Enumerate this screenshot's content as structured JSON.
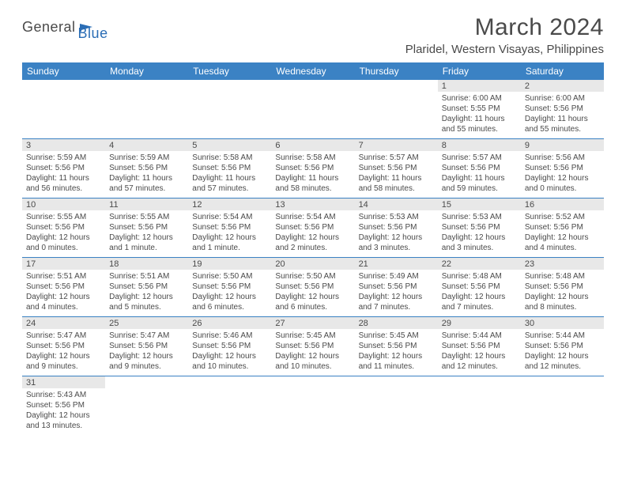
{
  "logo": {
    "textA": "General",
    "textB": "Blue"
  },
  "title": "March 2024",
  "location": "Plaridel, Western Visayas, Philippines",
  "colors": {
    "header_bg": "#3b82c4",
    "daybar_bg": "#e8e8e8",
    "text": "#4a4a4a",
    "row_border": "#3b82c4"
  },
  "daysOfWeek": [
    "Sunday",
    "Monday",
    "Tuesday",
    "Wednesday",
    "Thursday",
    "Friday",
    "Saturday"
  ],
  "weeks": [
    [
      {
        "n": "",
        "lines": []
      },
      {
        "n": "",
        "lines": []
      },
      {
        "n": "",
        "lines": []
      },
      {
        "n": "",
        "lines": []
      },
      {
        "n": "",
        "lines": []
      },
      {
        "n": "1",
        "lines": [
          "Sunrise: 6:00 AM",
          "Sunset: 5:55 PM",
          "Daylight: 11 hours and 55 minutes."
        ]
      },
      {
        "n": "2",
        "lines": [
          "Sunrise: 6:00 AM",
          "Sunset: 5:56 PM",
          "Daylight: 11 hours and 55 minutes."
        ]
      }
    ],
    [
      {
        "n": "3",
        "lines": [
          "Sunrise: 5:59 AM",
          "Sunset: 5:56 PM",
          "Daylight: 11 hours and 56 minutes."
        ]
      },
      {
        "n": "4",
        "lines": [
          "Sunrise: 5:59 AM",
          "Sunset: 5:56 PM",
          "Daylight: 11 hours and 57 minutes."
        ]
      },
      {
        "n": "5",
        "lines": [
          "Sunrise: 5:58 AM",
          "Sunset: 5:56 PM",
          "Daylight: 11 hours and 57 minutes."
        ]
      },
      {
        "n": "6",
        "lines": [
          "Sunrise: 5:58 AM",
          "Sunset: 5:56 PM",
          "Daylight: 11 hours and 58 minutes."
        ]
      },
      {
        "n": "7",
        "lines": [
          "Sunrise: 5:57 AM",
          "Sunset: 5:56 PM",
          "Daylight: 11 hours and 58 minutes."
        ]
      },
      {
        "n": "8",
        "lines": [
          "Sunrise: 5:57 AM",
          "Sunset: 5:56 PM",
          "Daylight: 11 hours and 59 minutes."
        ]
      },
      {
        "n": "9",
        "lines": [
          "Sunrise: 5:56 AM",
          "Sunset: 5:56 PM",
          "Daylight: 12 hours and 0 minutes."
        ]
      }
    ],
    [
      {
        "n": "10",
        "lines": [
          "Sunrise: 5:55 AM",
          "Sunset: 5:56 PM",
          "Daylight: 12 hours and 0 minutes."
        ]
      },
      {
        "n": "11",
        "lines": [
          "Sunrise: 5:55 AM",
          "Sunset: 5:56 PM",
          "Daylight: 12 hours and 1 minute."
        ]
      },
      {
        "n": "12",
        "lines": [
          "Sunrise: 5:54 AM",
          "Sunset: 5:56 PM",
          "Daylight: 12 hours and 1 minute."
        ]
      },
      {
        "n": "13",
        "lines": [
          "Sunrise: 5:54 AM",
          "Sunset: 5:56 PM",
          "Daylight: 12 hours and 2 minutes."
        ]
      },
      {
        "n": "14",
        "lines": [
          "Sunrise: 5:53 AM",
          "Sunset: 5:56 PM",
          "Daylight: 12 hours and 3 minutes."
        ]
      },
      {
        "n": "15",
        "lines": [
          "Sunrise: 5:53 AM",
          "Sunset: 5:56 PM",
          "Daylight: 12 hours and 3 minutes."
        ]
      },
      {
        "n": "16",
        "lines": [
          "Sunrise: 5:52 AM",
          "Sunset: 5:56 PM",
          "Daylight: 12 hours and 4 minutes."
        ]
      }
    ],
    [
      {
        "n": "17",
        "lines": [
          "Sunrise: 5:51 AM",
          "Sunset: 5:56 PM",
          "Daylight: 12 hours and 4 minutes."
        ]
      },
      {
        "n": "18",
        "lines": [
          "Sunrise: 5:51 AM",
          "Sunset: 5:56 PM",
          "Daylight: 12 hours and 5 minutes."
        ]
      },
      {
        "n": "19",
        "lines": [
          "Sunrise: 5:50 AM",
          "Sunset: 5:56 PM",
          "Daylight: 12 hours and 6 minutes."
        ]
      },
      {
        "n": "20",
        "lines": [
          "Sunrise: 5:50 AM",
          "Sunset: 5:56 PM",
          "Daylight: 12 hours and 6 minutes."
        ]
      },
      {
        "n": "21",
        "lines": [
          "Sunrise: 5:49 AM",
          "Sunset: 5:56 PM",
          "Daylight: 12 hours and 7 minutes."
        ]
      },
      {
        "n": "22",
        "lines": [
          "Sunrise: 5:48 AM",
          "Sunset: 5:56 PM",
          "Daylight: 12 hours and 7 minutes."
        ]
      },
      {
        "n": "23",
        "lines": [
          "Sunrise: 5:48 AM",
          "Sunset: 5:56 PM",
          "Daylight: 12 hours and 8 minutes."
        ]
      }
    ],
    [
      {
        "n": "24",
        "lines": [
          "Sunrise: 5:47 AM",
          "Sunset: 5:56 PM",
          "Daylight: 12 hours and 9 minutes."
        ]
      },
      {
        "n": "25",
        "lines": [
          "Sunrise: 5:47 AM",
          "Sunset: 5:56 PM",
          "Daylight: 12 hours and 9 minutes."
        ]
      },
      {
        "n": "26",
        "lines": [
          "Sunrise: 5:46 AM",
          "Sunset: 5:56 PM",
          "Daylight: 12 hours and 10 minutes."
        ]
      },
      {
        "n": "27",
        "lines": [
          "Sunrise: 5:45 AM",
          "Sunset: 5:56 PM",
          "Daylight: 12 hours and 10 minutes."
        ]
      },
      {
        "n": "28",
        "lines": [
          "Sunrise: 5:45 AM",
          "Sunset: 5:56 PM",
          "Daylight: 12 hours and 11 minutes."
        ]
      },
      {
        "n": "29",
        "lines": [
          "Sunrise: 5:44 AM",
          "Sunset: 5:56 PM",
          "Daylight: 12 hours and 12 minutes."
        ]
      },
      {
        "n": "30",
        "lines": [
          "Sunrise: 5:44 AM",
          "Sunset: 5:56 PM",
          "Daylight: 12 hours and 12 minutes."
        ]
      }
    ],
    [
      {
        "n": "31",
        "lines": [
          "Sunrise: 5:43 AM",
          "Sunset: 5:56 PM",
          "Daylight: 12 hours and 13 minutes."
        ]
      },
      {
        "n": "",
        "lines": []
      },
      {
        "n": "",
        "lines": []
      },
      {
        "n": "",
        "lines": []
      },
      {
        "n": "",
        "lines": []
      },
      {
        "n": "",
        "lines": []
      },
      {
        "n": "",
        "lines": []
      }
    ]
  ]
}
